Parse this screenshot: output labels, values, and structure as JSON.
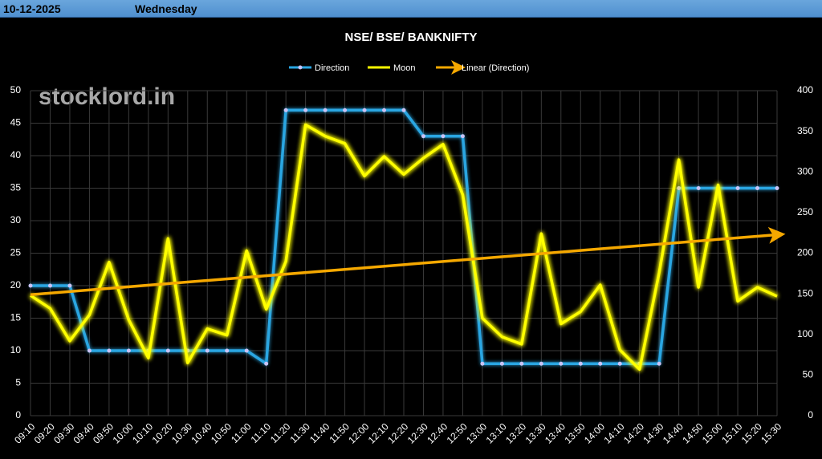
{
  "header": {
    "date": "10-12-2025",
    "day": "Wednesday"
  },
  "watermark": "stocklord.in",
  "chart_data": {
    "type": "line",
    "title": "NSE/ BSE/ BANKNIFTY",
    "categories": [
      "09:10",
      "09:20",
      "09:30",
      "09:40",
      "09:50",
      "10:00",
      "10:10",
      "10:20",
      "10:30",
      "10:40",
      "10:50",
      "11:00",
      "11:10",
      "11:20",
      "11:30",
      "11:40",
      "11:50",
      "12:00",
      "12:10",
      "12:20",
      "12:30",
      "12:40",
      "12:50",
      "13:00",
      "13:10",
      "13:20",
      "13:30",
      "13:40",
      "13:50",
      "14:00",
      "14:10",
      "14:20",
      "14:30",
      "14:40",
      "14:50",
      "15:00",
      "15:10",
      "15:20",
      "15:30"
    ],
    "series": [
      {
        "name": "Direction",
        "color": "#2aa6e2",
        "values": [
          20,
          20,
          20,
          10,
          10,
          10,
          10,
          10,
          10,
          10,
          10,
          10,
          8,
          47,
          47,
          47,
          47,
          47,
          47,
          47,
          43,
          43,
          43,
          8,
          8,
          8,
          8,
          8,
          8,
          8,
          8,
          8,
          8,
          35,
          35,
          35,
          35,
          35,
          35
        ]
      },
      {
        "name": "Moon",
        "color": "#ffff00",
        "axis": "y2",
        "values": [
          148,
          132,
          92,
          124,
          189,
          118,
          71,
          218,
          65,
          107,
          99,
          203,
          131,
          190,
          358,
          344,
          335,
          295,
          319,
          297,
          317,
          334,
          272,
          120,
          97,
          88,
          224,
          113,
          128,
          161,
          81,
          57,
          176,
          315,
          158,
          284,
          141,
          158,
          147
        ]
      }
    ],
    "trendline": {
      "name": "Linear (Direction)",
      "color": "#f5a800",
      "series": 0
    },
    "ylim": [
      0,
      50
    ],
    "yticks": [
      0,
      5,
      10,
      15,
      20,
      25,
      30,
      35,
      40,
      45,
      50
    ],
    "y2lim": [
      0,
      400
    ],
    "y2ticks": [
      0,
      50,
      100,
      150,
      200,
      250,
      300,
      350,
      400
    ],
    "grid": true
  }
}
